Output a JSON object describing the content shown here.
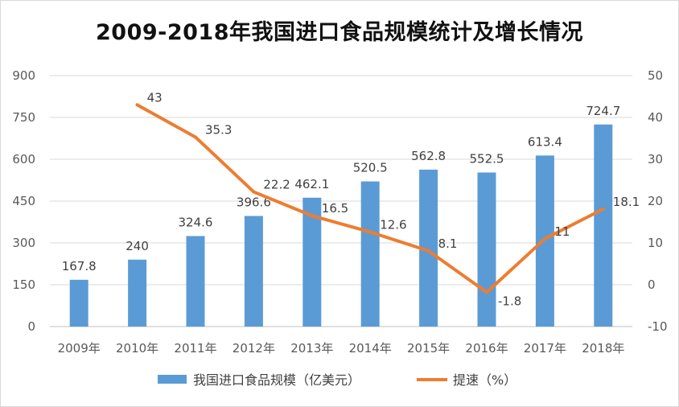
{
  "chart_data": {
    "type": "bar",
    "title": "2009-2018年我国进口食品规模统计及增长情况",
    "categories": [
      "2009年",
      "2010年",
      "2011年",
      "2012年",
      "2013年",
      "2014年",
      "2015年",
      "2016年",
      "2017年",
      "2018年"
    ],
    "series": [
      {
        "name": "我国进口食品规模（亿美元）",
        "type": "bar",
        "axis": "left",
        "color": "#5b9bd5",
        "values": [
          167.8,
          240,
          324.6,
          396.6,
          462.1,
          520.5,
          562.8,
          552.5,
          613.4,
          724.7
        ],
        "labels": [
          "167.8",
          "240",
          "324.6",
          "396.6",
          "462.1",
          "520.5",
          "562.8",
          "552.5",
          "613.4",
          "724.7"
        ]
      },
      {
        "name": "提速（%）",
        "type": "line",
        "axis": "right",
        "color": "#ed7d31",
        "values": [
          null,
          43,
          35.3,
          22.2,
          16.5,
          12.6,
          8.1,
          -1.8,
          11,
          18.1
        ],
        "labels": [
          "",
          "43",
          "35.3",
          "22.2",
          "16.5",
          "12.6",
          "8.1",
          "-1.8",
          "11",
          "18.1"
        ]
      }
    ],
    "y_left": {
      "min": 0,
      "max": 900,
      "ticks": [
        "0",
        "150",
        "300",
        "450",
        "600",
        "750",
        "900"
      ]
    },
    "y_right": {
      "min": -10,
      "max": 50,
      "ticks": [
        "-10",
        "0",
        "10",
        "20",
        "30",
        "40",
        "50"
      ]
    },
    "grid": true,
    "legend": "bottom"
  }
}
